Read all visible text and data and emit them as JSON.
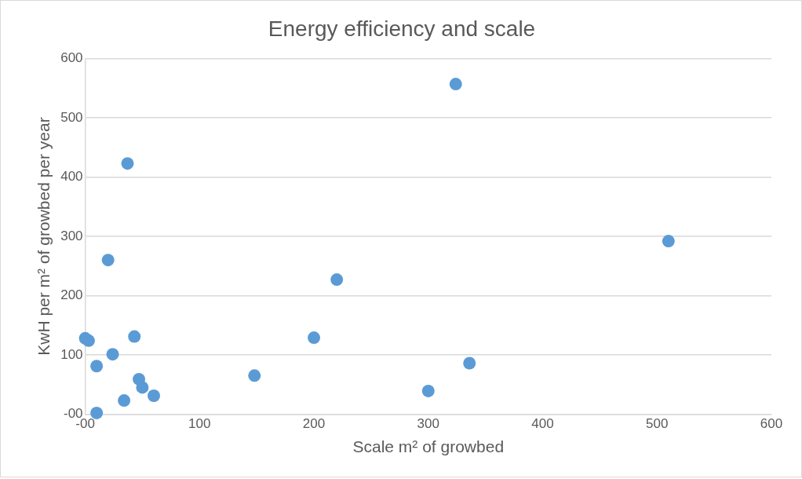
{
  "chart_data": {
    "type": "scatter",
    "title": "Energy efficiency and scale",
    "xlabel": "Scale m² of growbed",
    "ylabel": "KwH per m² of growbed per year",
    "x": [
      0,
      3,
      10,
      10,
      20,
      24,
      34,
      37,
      43,
      47,
      50,
      60,
      148,
      200,
      220,
      300,
      324,
      336,
      510
    ],
    "series": [
      {
        "color": "#5b9bd5",
        "values": [
          128,
          124,
          81,
          2,
          260,
          101,
          23,
          423,
          131,
          59,
          45,
          31,
          65,
          129,
          227,
          39,
          557,
          86,
          292
        ]
      }
    ],
    "xlim": [
      0,
      600
    ],
    "xticks": [
      {
        "value": 0,
        "label": "-00"
      },
      100,
      200,
      300,
      400,
      500,
      600
    ],
    "ylim": [
      0,
      600
    ],
    "yticks": [
      {
        "value": 0,
        "label": "-00"
      },
      100,
      200,
      300,
      400,
      500,
      600
    ],
    "grid": "y",
    "legend": false,
    "marker": "circle"
  }
}
